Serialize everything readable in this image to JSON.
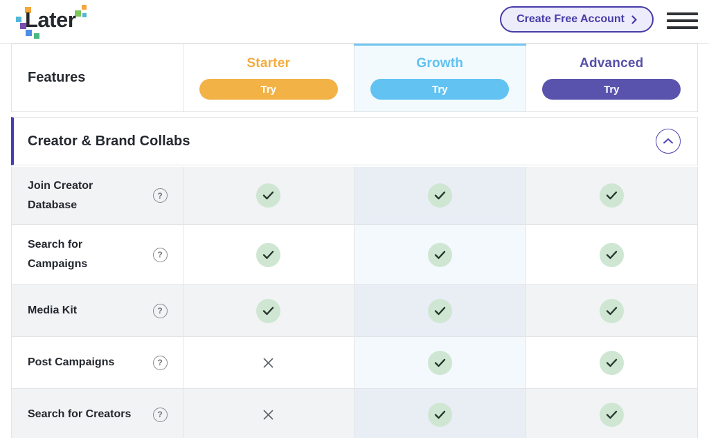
{
  "header": {
    "logo_text": "Later",
    "create_account_label": "Create Free Account"
  },
  "table": {
    "features_header": "Features",
    "plans": [
      {
        "name": "Starter",
        "try_label": "Try",
        "accent_color": "#F2B246",
        "name_color": "#F2AC3E",
        "highlighted": false
      },
      {
        "name": "Growth",
        "try_label": "Try",
        "accent_color": "#62C3F3",
        "name_color": "#5EC1F2",
        "highlighted": true
      },
      {
        "name": "Advanced",
        "try_label": "Try",
        "accent_color": "#5A53AD",
        "name_color": "#5650A8",
        "highlighted": false
      }
    ],
    "section": {
      "title": "Creator & Brand Collabs",
      "state": "expanded"
    },
    "rows": [
      {
        "label": "Join Creator\nDatabase",
        "cells": [
          "check",
          "check",
          "check"
        ]
      },
      {
        "label": "Search for\nCampaigns",
        "cells": [
          "check",
          "check",
          "check"
        ]
      },
      {
        "label": "Media Kit",
        "cells": [
          "check",
          "check",
          "check"
        ]
      },
      {
        "label": "Post Campaigns",
        "cells": [
          "cross",
          "check",
          "check"
        ]
      },
      {
        "label": "Search for Creators",
        "cells": [
          "cross",
          "check",
          "check"
        ]
      }
    ]
  },
  "colors": {
    "section_bar": "#453CB5",
    "check_circle_bg": "#CEE6D2",
    "check_stroke": "#26342B",
    "cross_stroke": "#5F6469",
    "create_button": "#453CA8"
  }
}
